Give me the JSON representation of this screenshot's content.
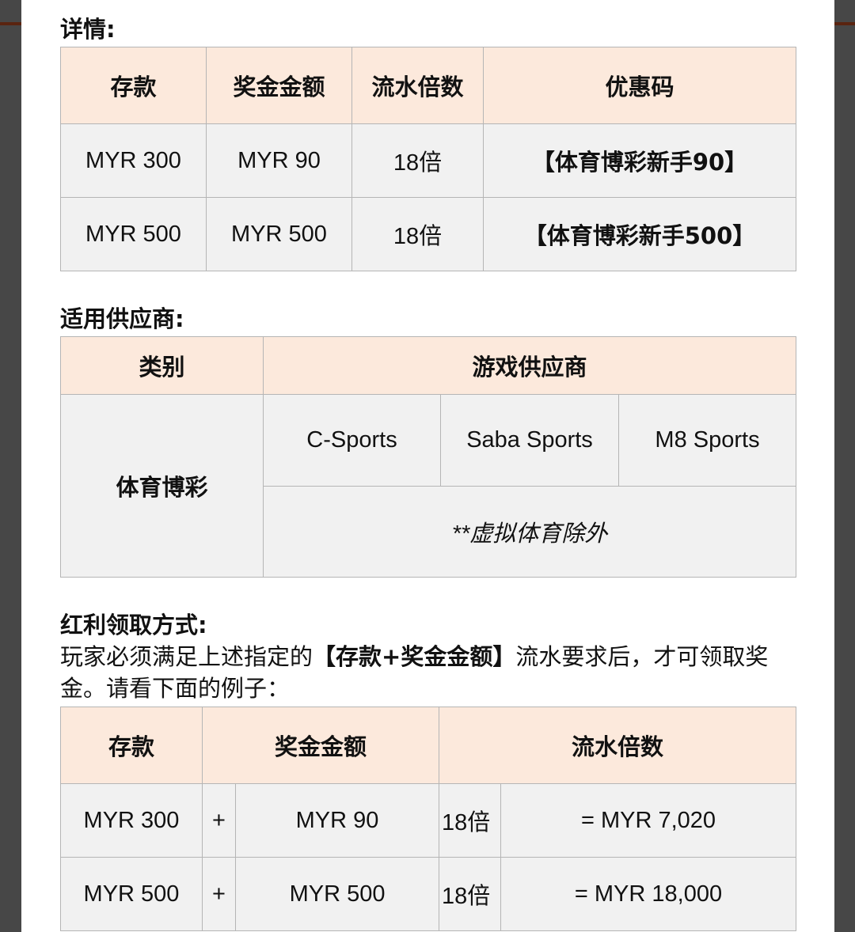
{
  "details": {
    "heading": "详情:",
    "headers": [
      "存款",
      "奖金金额",
      "流水倍数",
      "优惠码"
    ],
    "rows": [
      [
        "MYR 300",
        "MYR 90",
        "18倍",
        "【体育博彩新手90】"
      ],
      [
        "MYR 500",
        "MYR 500",
        "18倍",
        "【体育博彩新手500】"
      ]
    ]
  },
  "providers": {
    "heading": "适用供应商:",
    "headers": [
      "类别",
      "游戏供应商"
    ],
    "category": "体育博彩",
    "items": [
      "C-Sports",
      "Saba Sports",
      "M8 Sports"
    ],
    "note": "**虚拟体育除外"
  },
  "claim": {
    "heading": "红利领取方式:",
    "text_before": "玩家必须满足上述指定的",
    "text_bold": "【存款+奖金金额】",
    "text_after": "流水要求后，才可领取奖金。请看下面的例子：",
    "headers": [
      "存款",
      "奖金金额",
      "流水倍数"
    ],
    "rows": [
      [
        "MYR 300",
        "+",
        "MYR 90",
        "18倍",
        "= MYR 7,020"
      ],
      [
        "MYR 500",
        "+",
        "MYR 500",
        "18倍",
        "= MYR 18,000"
      ]
    ]
  },
  "colors": {
    "header_bg": "#fce9dc",
    "cell_bg": "#f1f1f1",
    "side": "#474747"
  }
}
